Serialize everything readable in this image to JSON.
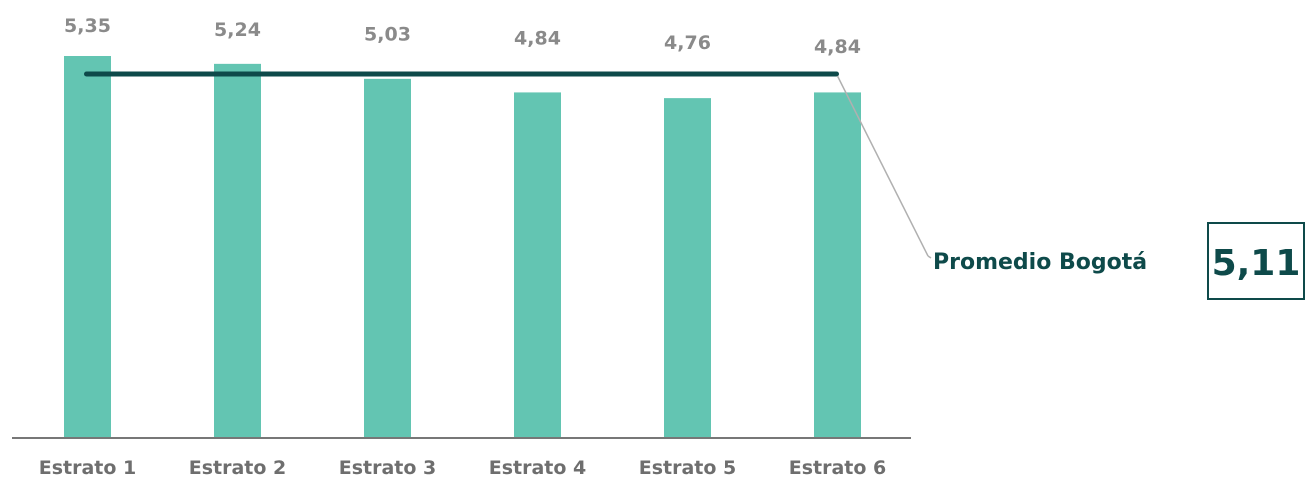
{
  "chart_data": {
    "type": "bar",
    "categories": [
      "Estrato 1",
      "Estrato 2",
      "Estrato 3",
      "Estrato 4",
      "Estrato 5",
      "Estrato 6"
    ],
    "values": [
      5.35,
      5.24,
      5.03,
      4.84,
      4.76,
      4.84
    ],
    "value_labels": [
      "5,35",
      "5,24",
      "5,03",
      "4,84",
      "4,76",
      "4,84"
    ],
    "reference_line": {
      "label": "Promedio Bogotá",
      "value": 5.11,
      "value_label": "5,11"
    },
    "title": "",
    "xlabel": "",
    "ylabel": "",
    "ylim": [
      0,
      5.35
    ],
    "grid": false,
    "colors": {
      "bar": "#63c5b2",
      "reference_line": "#0e4a4a",
      "value_text": "#8a8a8a",
      "category_text": "#6e6e6e",
      "axis": "#777777",
      "leader_line": "#b0b0b0"
    }
  }
}
